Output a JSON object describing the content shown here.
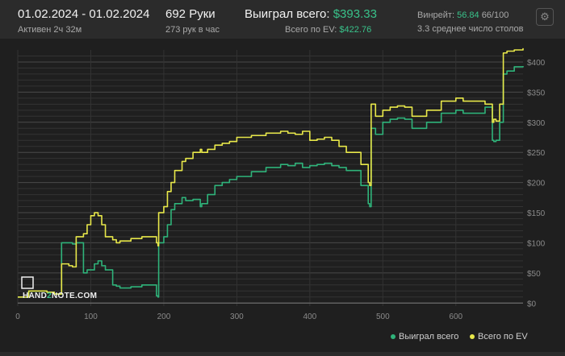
{
  "header": {
    "date_range": "01.02.2024 - 01.02.2024",
    "active_time": "Активен 2ч 32м",
    "hands": "692 Руки",
    "hands_per_hour": "273 рук в час",
    "won_total_label": "Выиграл всего:",
    "won_total_value": "$393.33",
    "ev_total_label": "Всего по EV:",
    "ev_total_value": "$422.76",
    "winrate_label": "Винрейт:",
    "winrate_value": "56.84",
    "winrate_suffix": "66/100",
    "tables_avg": "3.3 среднее число столов"
  },
  "logo": {
    "pre": "HAND",
    "two": "2",
    "post": "NOTE.COM"
  },
  "legend": {
    "won": "Выиграл всего",
    "ev": "Всего по EV"
  },
  "colors": {
    "won": "#2fb37a",
    "ev": "#e8e84a",
    "accent": "#39c28a",
    "background": "#1f1f1f"
  },
  "icons": {
    "settings": "gear-icon"
  },
  "chart_data": {
    "type": "line",
    "x_ticks": [
      "0",
      "100",
      "200",
      "300",
      "400",
      "500",
      "600"
    ],
    "y_ticks": [
      "$0",
      "$50",
      "$100",
      "$150",
      "$200",
      "$250",
      "$300",
      "$350",
      "$400"
    ],
    "xlim": [
      0,
      692
    ],
    "ylim": [
      -5,
      420
    ],
    "grid": true,
    "legend_position": "bottom-right",
    "series": [
      {
        "name": "Выиграл всего",
        "key": "won",
        "x": [
          0,
          10,
          15,
          25,
          40,
          50,
          55,
          60,
          70,
          75,
          80,
          90,
          95,
          105,
          110,
          115,
          120,
          130,
          135,
          140,
          155,
          170,
          180,
          190,
          192,
          193,
          200,
          205,
          210,
          215,
          225,
          230,
          240,
          250,
          252,
          260,
          270,
          280,
          290,
          300,
          320,
          340,
          360,
          370,
          380,
          390,
          400,
          410,
          420,
          430,
          440,
          450,
          470,
          480,
          482,
          484,
          490,
          500,
          510,
          520,
          530,
          540,
          560,
          580,
          600,
          610,
          640,
          650,
          652,
          655,
          660,
          665,
          670,
          680,
          692
        ],
        "y": [
          10,
          10,
          20,
          20,
          18,
          15,
          15,
          100,
          100,
          98,
          100,
          50,
          55,
          65,
          70,
          62,
          55,
          30,
          28,
          25,
          27,
          30,
          30,
          12,
          10,
          100,
          110,
          130,
          155,
          165,
          175,
          170,
          172,
          160,
          165,
          180,
          195,
          200,
          205,
          210,
          218,
          225,
          230,
          228,
          232,
          225,
          228,
          230,
          232,
          228,
          225,
          220,
          195,
          165,
          160,
          290,
          280,
          300,
          305,
          307,
          305,
          290,
          300,
          315,
          320,
          315,
          325,
          270,
          268,
          270,
          300,
          380,
          385,
          392,
          393.33
        ]
      },
      {
        "name": "Всего по EV",
        "key": "ev",
        "x": [
          0,
          10,
          15,
          25,
          40,
          50,
          55,
          60,
          70,
          75,
          80,
          90,
          95,
          100,
          105,
          110,
          115,
          120,
          130,
          135,
          140,
          155,
          170,
          180,
          190,
          192,
          193,
          200,
          205,
          210,
          215,
          225,
          230,
          240,
          250,
          252,
          260,
          270,
          280,
          290,
          300,
          320,
          340,
          360,
          370,
          380,
          390,
          400,
          410,
          420,
          430,
          440,
          450,
          470,
          480,
          482,
          484,
          490,
          500,
          510,
          520,
          530,
          540,
          560,
          580,
          600,
          610,
          640,
          650,
          652,
          655,
          660,
          665,
          670,
          680,
          692
        ],
        "y": [
          10,
          10,
          20,
          20,
          18,
          15,
          15,
          65,
          62,
          60,
          110,
          115,
          130,
          145,
          150,
          145,
          130,
          110,
          105,
          100,
          103,
          107,
          110,
          110,
          100,
          95,
          150,
          160,
          185,
          200,
          220,
          235,
          240,
          250,
          255,
          250,
          255,
          262,
          265,
          268,
          275,
          278,
          282,
          285,
          282,
          280,
          285,
          270,
          272,
          275,
          270,
          260,
          250,
          230,
          200,
          195,
          330,
          310,
          320,
          325,
          327,
          325,
          310,
          320,
          335,
          340,
          335,
          330,
          300,
          305,
          302,
          330,
          415,
          418,
          420,
          422.76
        ]
      }
    ]
  }
}
